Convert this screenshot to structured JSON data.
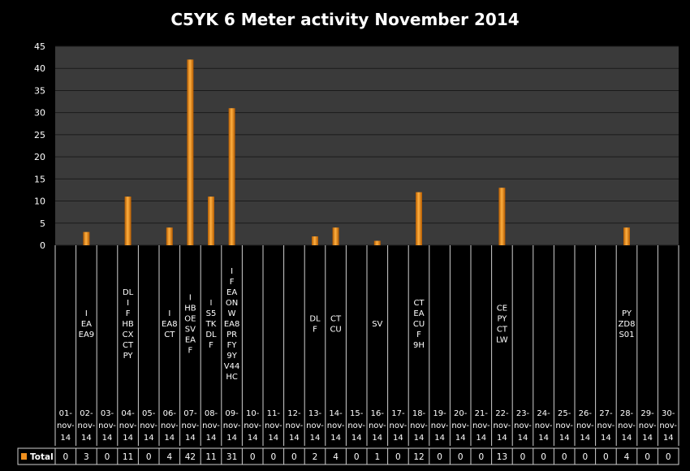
{
  "chart_data": {
    "type": "bar",
    "title": "C5YK 6 Meter activity November 2014",
    "xlabel": "",
    "ylabel": "",
    "ylim": [
      0,
      45
    ],
    "yticks": [
      0,
      5,
      10,
      15,
      20,
      25,
      30,
      35,
      40,
      45
    ],
    "grid": true,
    "legend_position": "bottom-left",
    "bar_color": "#f0901e",
    "categories": [
      "01-nov-14",
      "02-nov-14",
      "03-nov-14",
      "04-nov-14",
      "05-nov-14",
      "06-nov-14",
      "07-nov-14",
      "08-nov-14",
      "09-nov-14",
      "10-nov-14",
      "11-nov-14",
      "12-nov-14",
      "13-nov-14",
      "14-nov-14",
      "15-nov-14",
      "16-nov-14",
      "17-nov-14",
      "18-nov-14",
      "19-nov-14",
      "20-nov-14",
      "21-nov-14",
      "22-nov-14",
      "23-nov-14",
      "24-nov-14",
      "25-nov-14",
      "26-nov-14",
      "27-nov-14",
      "28-nov-14",
      "29-nov-14",
      "30-nov-14"
    ],
    "category_notes": [
      [],
      [
        "I",
        "EA",
        "EA9"
      ],
      [],
      [
        "DL",
        "I",
        "F",
        "HB",
        "CX",
        "CT",
        "PY"
      ],
      [],
      [
        "I",
        "EA8",
        "CT"
      ],
      [
        "I",
        "HB",
        "OE",
        "SV",
        "EA",
        "F"
      ],
      [
        "I",
        "S5",
        "TK",
        "DL",
        "F"
      ],
      [
        "I",
        "F",
        "EA",
        "ON",
        "W",
        "EA8",
        "PR",
        "FY",
        "9Y",
        "V44",
        "HC"
      ],
      [],
      [],
      [],
      [
        "DL",
        "F"
      ],
      [
        "CT",
        "CU"
      ],
      [],
      [
        "SV"
      ],
      [],
      [
        "CT",
        "EA",
        "CU",
        "F",
        "9H"
      ],
      [],
      [],
      [],
      [
        "CE",
        "PY",
        "CT",
        "LW"
      ],
      [],
      [],
      [],
      [],
      [],
      [
        "PY",
        "ZD8",
        "S01"
      ],
      [],
      []
    ],
    "series": [
      {
        "name": "Total",
        "values": [
          0,
          3,
          0,
          11,
          0,
          4,
          42,
          11,
          31,
          0,
          0,
          0,
          2,
          4,
          0,
          1,
          0,
          12,
          0,
          0,
          0,
          13,
          0,
          0,
          0,
          0,
          0,
          4,
          0,
          0
        ]
      }
    ]
  }
}
